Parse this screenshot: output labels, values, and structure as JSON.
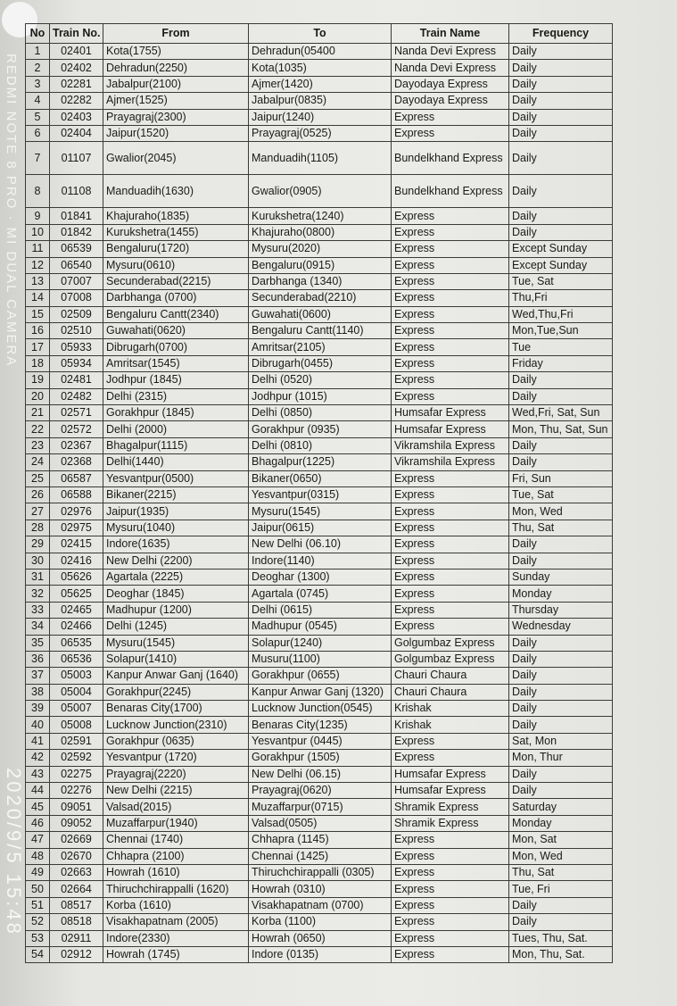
{
  "watermark": "REDMI NOTE 8 PRO · MI DUAL CAMERA",
  "timestamp": "2020/9/5 15:48",
  "headers": [
    "No",
    "Train No.",
    "From",
    "To",
    "Train Name",
    "Frequency"
  ],
  "rows": [
    [
      "1",
      "02401",
      "Kota(1755)",
      "Dehradun(05400",
      "Nanda Devi Express",
      "Daily"
    ],
    [
      "2",
      "02402",
      "Dehradun(2250)",
      "Kota(1035)",
      "Nanda Devi Express",
      "Daily"
    ],
    [
      "3",
      "02281",
      "Jabalpur(2100)",
      "Ajmer(1420)",
      "Dayodaya Express",
      "Daily"
    ],
    [
      "4",
      "02282",
      "Ajmer(1525)",
      "Jabalpur(0835)",
      "Dayodaya Express",
      "Daily"
    ],
    [
      "5",
      "02403",
      "Prayagraj(2300)",
      "Jaipur(1240)",
      "Express",
      "Daily"
    ],
    [
      "6",
      "02404",
      "Jaipur(1520)",
      "Prayagraj(0525)",
      "Express",
      "Daily"
    ],
    [
      "7",
      "01107",
      "Gwalior(2045)",
      "Manduadih(1105)",
      "Bundelkhand Express",
      "Daily"
    ],
    [
      "8",
      "01108",
      "Manduadih(1630)",
      "Gwalior(0905)",
      "Bundelkhand Express",
      "Daily"
    ],
    [
      "9",
      "01841",
      "Khajuraho(1835)",
      "Kurukshetra(1240)",
      "Express",
      "Daily"
    ],
    [
      "10",
      "01842",
      "Kurukshetra(1455)",
      "Khajuraho(0800)",
      "Express",
      "Daily"
    ],
    [
      "11",
      "06539",
      "Bengaluru(1720)",
      "Mysuru(2020)",
      "Express",
      "Except Sunday"
    ],
    [
      "12",
      "06540",
      "Mysuru(0610)",
      "Bengaluru(0915)",
      "Express",
      "Except Sunday"
    ],
    [
      "13",
      "07007",
      "Secunderabad(2215)",
      "Darbhanga (1340)",
      "Express",
      "Tue, Sat"
    ],
    [
      "14",
      "07008",
      "Darbhanga (0700)",
      "Secunderabad(2210)",
      "Express",
      "Thu,Fri"
    ],
    [
      "15",
      "02509",
      "Bengaluru Cantt(2340)",
      "Guwahati(0600)",
      "Express",
      "Wed,Thu,Fri"
    ],
    [
      "16",
      "02510",
      "Guwahati(0620)",
      "Bengaluru Cantt(1140)",
      "Express",
      "Mon,Tue,Sun"
    ],
    [
      "17",
      "05933",
      "Dibrugarh(0700)",
      "Amritsar(2105)",
      "Express",
      "Tue"
    ],
    [
      "18",
      "05934",
      "Amritsar(1545)",
      "Dibrugarh(0455)",
      "Express",
      "Friday"
    ],
    [
      "19",
      "02481",
      "Jodhpur (1845)",
      "Delhi (0520)",
      "Express",
      "Daily"
    ],
    [
      "20",
      "02482",
      "Delhi (2315)",
      "Jodhpur (1015)",
      "Express",
      "Daily"
    ],
    [
      "21",
      "02571",
      "Gorakhpur (1845)",
      "Delhi (0850)",
      "Humsafar Express",
      "Wed,Fri, Sat, Sun"
    ],
    [
      "22",
      "02572",
      "Delhi (2000)",
      "Gorakhpur (0935)",
      "Humsafar Express",
      "Mon, Thu, Sat, Sun"
    ],
    [
      "23",
      "02367",
      "Bhagalpur(1115)",
      "Delhi (0810)",
      "Vikramshila Express",
      "Daily"
    ],
    [
      "24",
      "02368",
      "Delhi(1440)",
      "Bhagalpur(1225)",
      "Vikramshila Express",
      "Daily"
    ],
    [
      "25",
      "06587",
      "Yesvantpur(0500)",
      "Bikaner(0650)",
      "Express",
      "Fri, Sun"
    ],
    [
      "26",
      "06588",
      "Bikaner(2215)",
      "Yesvantpur(0315)",
      "Express",
      "Tue, Sat"
    ],
    [
      "27",
      "02976",
      "Jaipur(1935)",
      "Mysuru(1545)",
      "Express",
      "Mon, Wed"
    ],
    [
      "28",
      "02975",
      "Mysuru(1040)",
      "Jaipur(0615)",
      "Express",
      "Thu, Sat"
    ],
    [
      "29",
      "02415",
      "Indore(1635)",
      "New Delhi (06.10)",
      "Express",
      "Daily"
    ],
    [
      "30",
      "02416",
      "New Delhi (2200)",
      "Indore(1140)",
      "Express",
      "Daily"
    ],
    [
      "31",
      "05626",
      "Agartala (2225)",
      "Deoghar (1300)",
      "Express",
      "Sunday"
    ],
    [
      "32",
      "05625",
      "Deoghar (1845)",
      "Agartala (0745)",
      "Express",
      "Monday"
    ],
    [
      "33",
      "02465",
      "Madhupur (1200)",
      "Delhi (0615)",
      "Express",
      "Thursday"
    ],
    [
      "34",
      "02466",
      "Delhi (1245)",
      "Madhupur (0545)",
      "Express",
      "Wednesday"
    ],
    [
      "35",
      "06535",
      "Mysuru(1545)",
      "Solapur(1240)",
      "Golgumbaz Express",
      "Daily"
    ],
    [
      "36",
      "06536",
      "Solapur(1410)",
      "Musuru(1100)",
      "Golgumbaz Express",
      "Daily"
    ],
    [
      "37",
      "05003",
      "Kanpur Anwar Ganj (1640)",
      "Gorakhpur (0655)",
      "Chauri Chaura",
      "Daily"
    ],
    [
      "38",
      "05004",
      "Gorakhpur(2245)",
      "Kanpur Anwar Ganj (1320)",
      "Chauri Chaura",
      "Daily"
    ],
    [
      "39",
      "05007",
      "Benaras City(1700)",
      "Lucknow Junction(0545)",
      "Krishak",
      "Daily"
    ],
    [
      "40",
      "05008",
      "Lucknow Junction(2310)",
      "Benaras City(1235)",
      "Krishak",
      "Daily"
    ],
    [
      "41",
      "02591",
      "Gorakhpur (0635)",
      "Yesvantpur (0445)",
      "Express",
      "Sat, Mon"
    ],
    [
      "42",
      "02592",
      "Yesvantpur (1720)",
      "Gorakhpur (1505)",
      "Express",
      "Mon, Thur"
    ],
    [
      "43",
      "02275",
      "Prayagraj(2220)",
      "New Delhi (06.15)",
      "Humsafar Express",
      "Daily"
    ],
    [
      "44",
      "02276",
      "New Delhi (2215)",
      "Prayagraj(0620)",
      "Humsafar Express",
      "Daily"
    ],
    [
      "45",
      "09051",
      "Valsad(2015)",
      "Muzaffarpur(0715)",
      "Shramik Express",
      "Saturday"
    ],
    [
      "46",
      "09052",
      "Muzaffarpur(1940)",
      "Valsad(0505)",
      "Shramik Express",
      "Monday"
    ],
    [
      "47",
      "02669",
      "Chennai (1740)",
      "Chhapra (1145)",
      "Express",
      "Mon, Sat"
    ],
    [
      "48",
      "02670",
      "Chhapra (2100)",
      "Chennai (1425)",
      "Express",
      "Mon, Wed"
    ],
    [
      "49",
      "02663",
      "Howrah (1610)",
      "Thiruchchirappalli (0305)",
      "Express",
      "Thu, Sat"
    ],
    [
      "50",
      "02664",
      "Thiruchchirappalli (1620)",
      "Howrah (0310)",
      "Express",
      "Tue, Fri"
    ],
    [
      "51",
      "08517",
      "Korba (1610)",
      "Visakhapatnam (0700)",
      "Express",
      "Daily"
    ],
    [
      "52",
      "08518",
      "Visakhapatnam (2005)",
      "Korba (1100)",
      "Express",
      "Daily"
    ],
    [
      "53",
      "02911",
      "Indore(2330)",
      "Howrah (0650)",
      "Express",
      "Tues, Thu, Sat."
    ],
    [
      "54",
      "02912",
      "Howrah (1745)",
      "Indore (0135)",
      "Express",
      "Mon, Thu, Sat."
    ]
  ]
}
